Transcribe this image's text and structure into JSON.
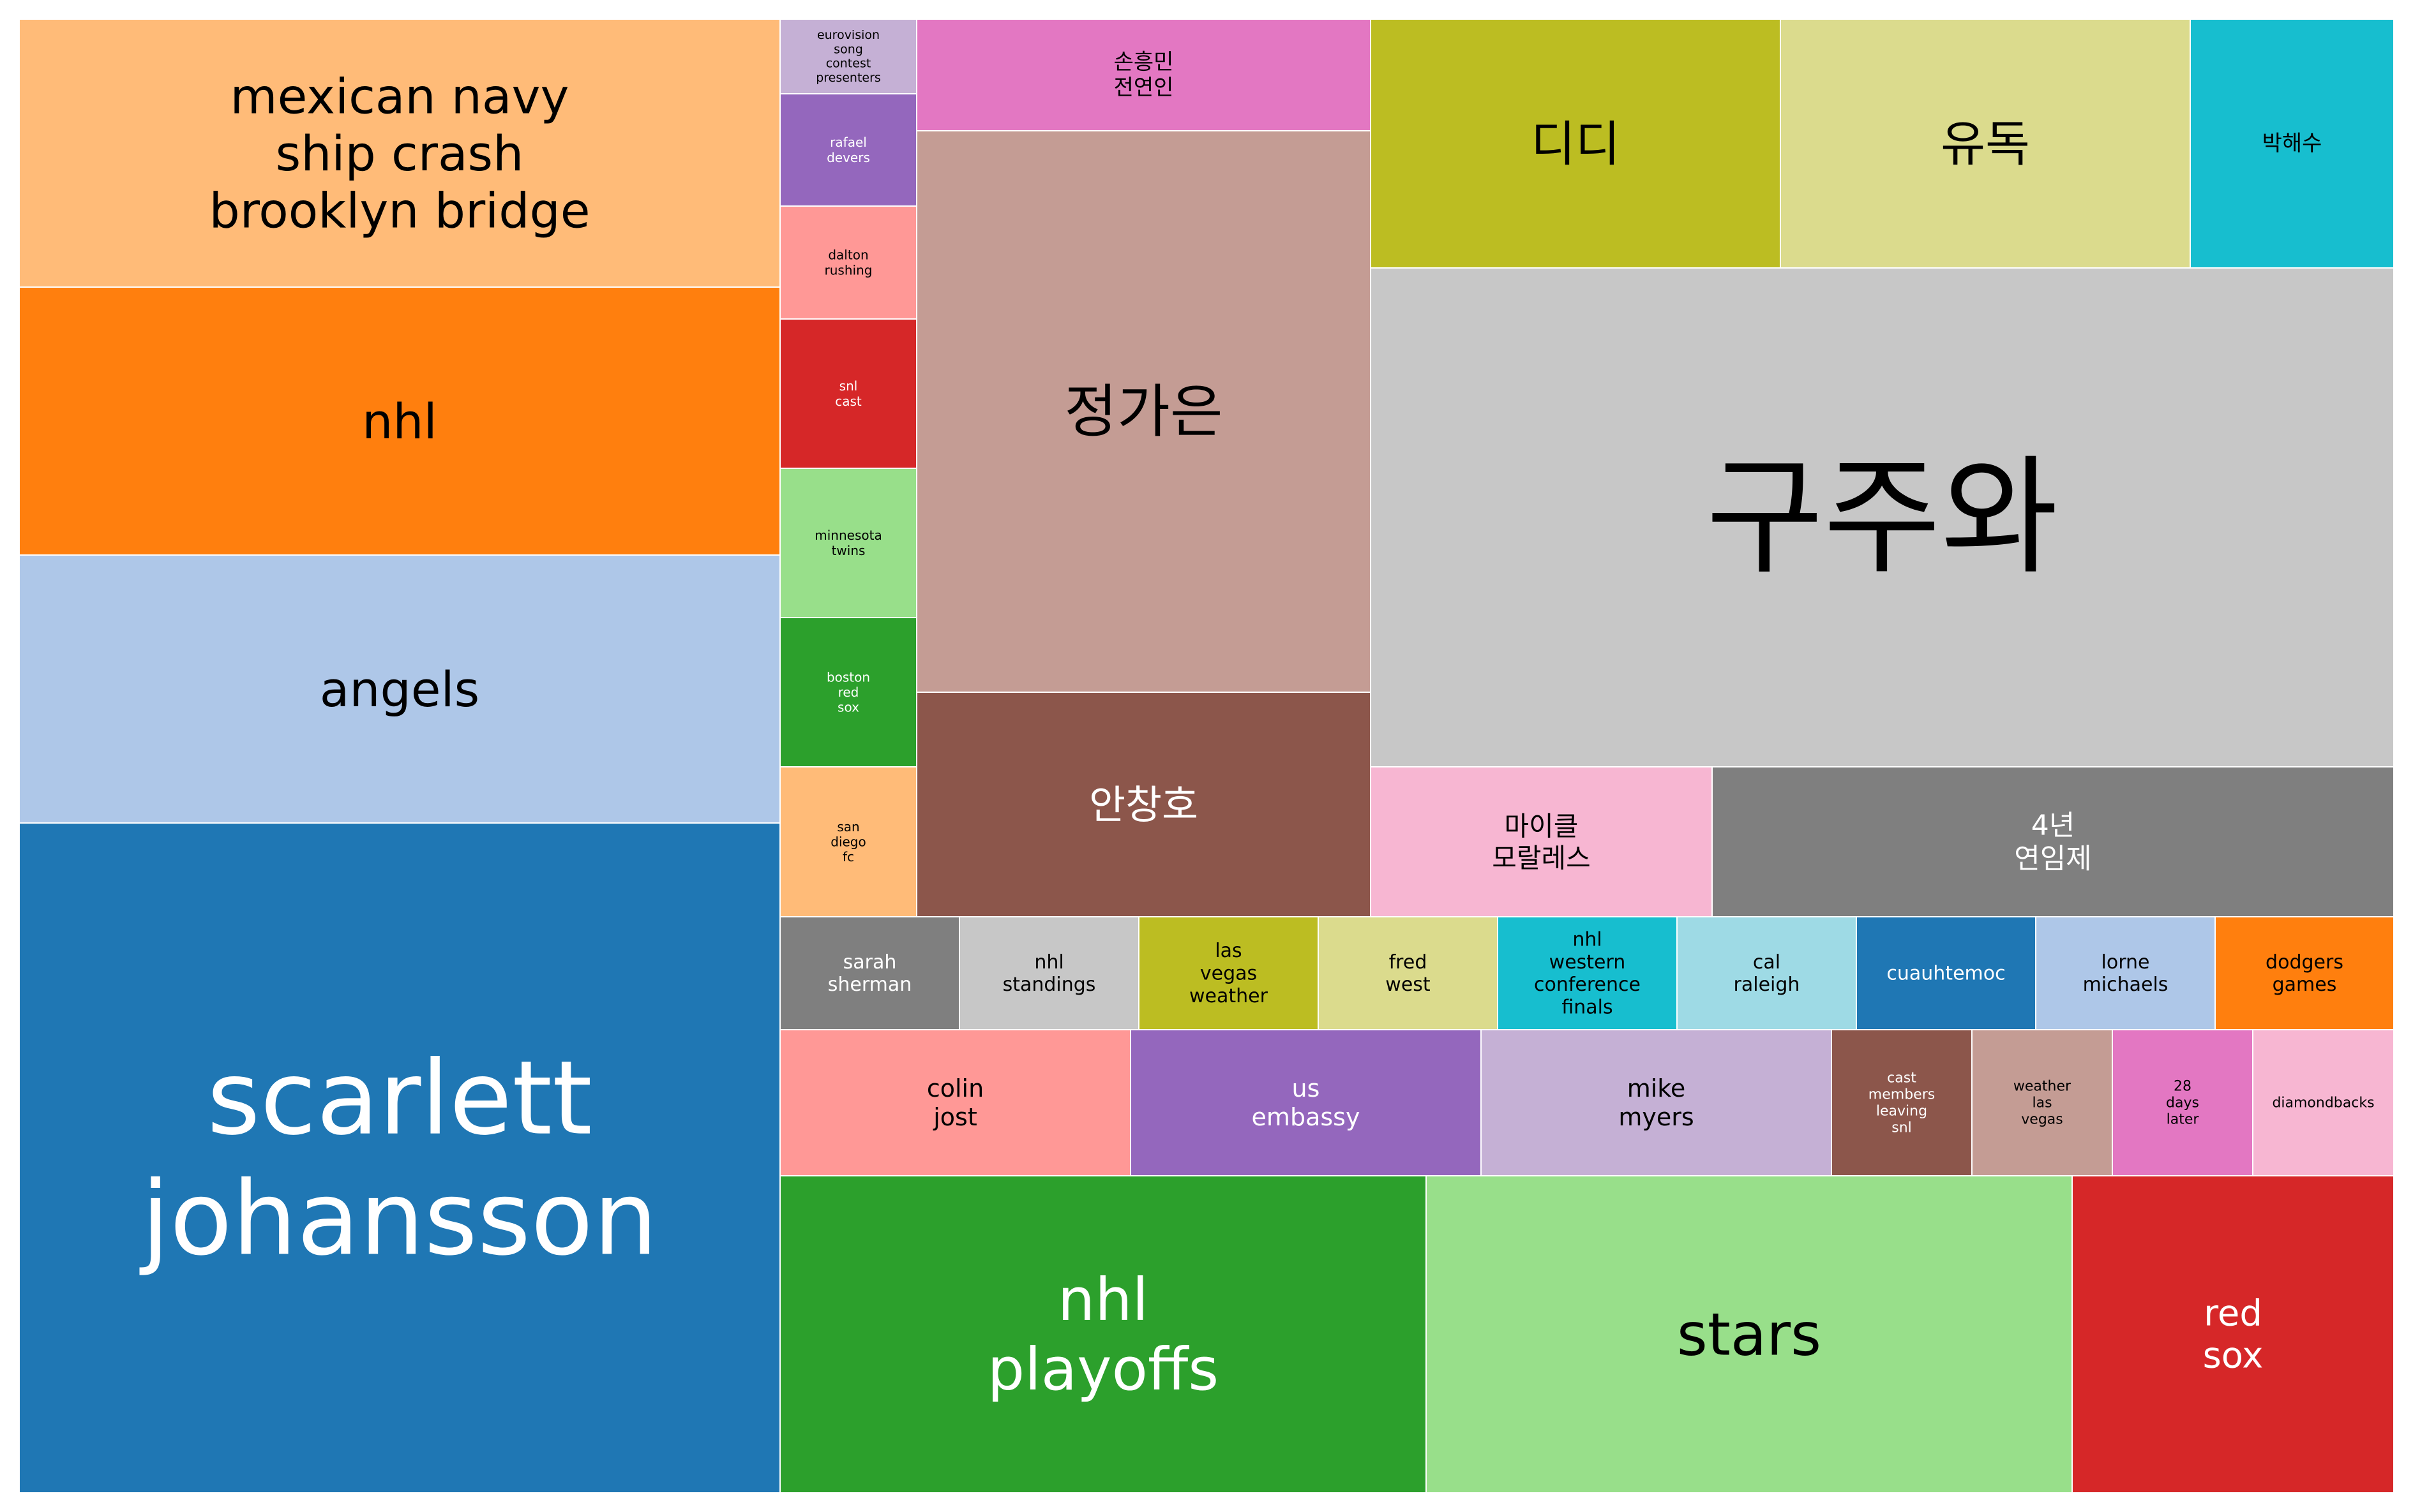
{
  "chart_data": {
    "type": "treemap",
    "title": "",
    "tiles": [
      {
        "label": "scarlett\njohansson",
        "value": 2133,
        "color": "#1f77b4",
        "text_color": "#ffffff"
      },
      {
        "label": "nhl",
        "value": 847,
        "color": "#ff7f0e",
        "text_color": "#000000"
      },
      {
        "label": "angels",
        "value": 847,
        "color": "#aec7e8",
        "text_color": "#000000"
      },
      {
        "label": "mexican navy\nship crash\nbrooklyn bridge",
        "value": 847,
        "color": "#ffbb78",
        "text_color": "#000000"
      },
      {
        "label": "구주와",
        "value": 2161,
        "color": "#c7c7c7",
        "text_color": "#000000"
      },
      {
        "label": "정가은",
        "value": 1062,
        "color": "#c49c94",
        "text_color": "#000000"
      },
      {
        "label": "nhl\nplayoffs",
        "value": 851,
        "color": "#2ca02c",
        "text_color": "#ffffff"
      },
      {
        "label": "stars",
        "value": 851,
        "color": "#98df8a",
        "text_color": "#000000"
      },
      {
        "label": "red\nsox",
        "value": 414,
        "color": "#d62728",
        "text_color": "#ffffff"
      },
      {
        "label": "4년\n연임제",
        "value": 563,
        "color": "#7f7f7f",
        "text_color": "#ffffff"
      },
      {
        "label": "디디",
        "value": 425,
        "color": "#bcbd22",
        "text_color": "#000000"
      },
      {
        "label": "유독",
        "value": 425,
        "color": "#dbdb8d",
        "text_color": "#000000"
      },
      {
        "label": "안창호",
        "value": 426,
        "color": "#8c564b",
        "text_color": "#ffffff"
      },
      {
        "label": "마이클\n모랄레스",
        "value": 287,
        "color": "#f7b6d2",
        "text_color": "#000000"
      },
      {
        "label": "손흥민\n전연인",
        "value": 211,
        "color": "#e377c2",
        "text_color": "#000000"
      },
      {
        "label": "박해수",
        "value": 210,
        "color": "#17becf",
        "text_color": "#000000"
      },
      {
        "label": "colin\njost",
        "value": 213,
        "color": "#ff9896",
        "text_color": "#000000"
      },
      {
        "label": "us\nembassy",
        "value": 213,
        "color": "#9467bd",
        "text_color": "#ffffff"
      },
      {
        "label": "mike\nmyers",
        "value": 213,
        "color": "#c5b0d5",
        "text_color": "#000000"
      },
      {
        "label": "sarah\nsherman",
        "value": 84,
        "color": "#7f7f7f",
        "text_color": "#ffffff"
      },
      {
        "label": "nhl\nstandings",
        "value": 84,
        "color": "#c7c7c7",
        "text_color": "#000000"
      },
      {
        "label": "las\nvegas\nweather",
        "value": 84,
        "color": "#bcbd22",
        "text_color": "#000000"
      },
      {
        "label": "fred\nwest",
        "value": 84,
        "color": "#dbdb8d",
        "text_color": "#000000"
      },
      {
        "label": "nhl\nwestern\nconference\nfinals",
        "value": 84,
        "color": "#17becf",
        "text_color": "#000000"
      },
      {
        "label": "cal\nraleigh",
        "value": 84,
        "color": "#9edae5",
        "text_color": "#000000"
      },
      {
        "label": "cuauhtemoc",
        "value": 84,
        "color": "#1f77b4",
        "text_color": "#ffffff"
      },
      {
        "label": "lorne\nmichaels",
        "value": 84,
        "color": "#aec7e8",
        "text_color": "#000000"
      },
      {
        "label": "dodgers\ngames",
        "value": 84,
        "color": "#ff7f0e",
        "text_color": "#000000"
      },
      {
        "label": "cast\nmembers\nleaving\nsnl",
        "value": 85,
        "color": "#8c564b",
        "text_color": "#ffffff"
      },
      {
        "label": "weather\nlas\nvegas",
        "value": 85,
        "color": "#c49c94",
        "text_color": "#000000"
      },
      {
        "label": "28\ndays\nlater",
        "value": 85,
        "color": "#e377c2",
        "text_color": "#000000"
      },
      {
        "label": "diamondbacks",
        "value": 85,
        "color": "#f7b6d2",
        "text_color": "#000000"
      },
      {
        "label": "boston\nred\nsox",
        "value": 84,
        "color": "#2ca02c",
        "text_color": "#ffffff"
      },
      {
        "label": "snl\ncast",
        "value": 84,
        "color": "#d62728",
        "text_color": "#ffffff"
      },
      {
        "label": "minnesota\ntwins",
        "value": 84,
        "color": "#98df8a",
        "text_color": "#000000"
      },
      {
        "label": "san\ndiego\nfc",
        "value": 84,
        "color": "#ffbb78",
        "text_color": "#000000"
      },
      {
        "label": "rafael\ndevers",
        "value": 63,
        "color": "#9467bd",
        "text_color": "#ffffff"
      },
      {
        "label": "dalton\nrushing",
        "value": 63,
        "color": "#ff9896",
        "text_color": "#000000"
      },
      {
        "label": "eurovision\nsong\ncontest\npresenters",
        "value": 42,
        "color": "#c5b0d5",
        "text_color": "#000000"
      }
    ]
  }
}
